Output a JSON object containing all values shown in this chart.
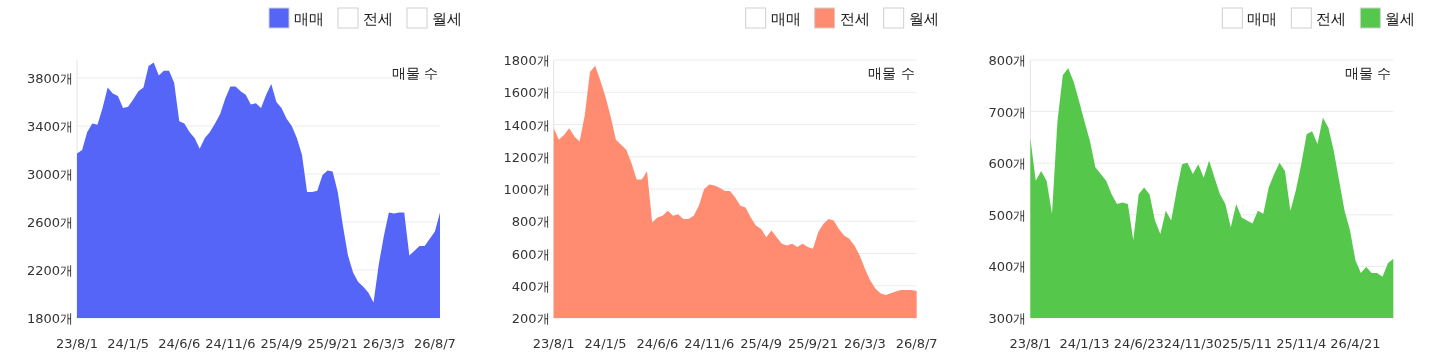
{
  "chart_data": [
    {
      "type": "area",
      "ylabel": "매물 수",
      "grid": "y",
      "legend": "top right",
      "categories": [
        "23/8/1",
        null,
        null,
        null,
        null,
        null,
        null,
        null,
        null,
        null,
        "24/1/5",
        null,
        null,
        null,
        null,
        null,
        null,
        null,
        null,
        null,
        "24/6/6",
        null,
        null,
        null,
        null,
        null,
        null,
        null,
        null,
        null,
        "24/11/6",
        null,
        null,
        null,
        null,
        null,
        null,
        null,
        null,
        null,
        "25/4/9",
        null,
        null,
        null,
        null,
        null,
        null,
        null,
        null,
        null,
        "25/9/21",
        null,
        null,
        null,
        null,
        null,
        null,
        null,
        null,
        null,
        "26/3/3",
        null,
        null,
        null,
        null,
        null,
        null,
        null,
        null,
        null,
        "26/8/7",
        null
      ],
      "ylim": [
        1800,
        3950
      ],
      "yticks": [
        {
          "value": 1800,
          "label": "1800개"
        },
        {
          "value": 2200,
          "label": "2200개"
        },
        {
          "value": 2600,
          "label": "2600개"
        },
        {
          "value": 3000,
          "label": "3000개"
        },
        {
          "value": 3400,
          "label": "3400개"
        },
        {
          "value": 3800,
          "label": "3800개"
        }
      ],
      "series": [
        {
          "name": "매매",
          "color": "#5465f8",
          "values": [
            3170,
            3200,
            3350,
            3420,
            3410,
            3550,
            3720,
            3670,
            3650,
            3550,
            3560,
            3620,
            3690,
            3720,
            3900,
            3930,
            3820,
            3860,
            3860,
            3760,
            3440,
            3420,
            3350,
            3300,
            3210,
            3300,
            3350,
            3420,
            3500,
            3630,
            3730,
            3730,
            3690,
            3660,
            3580,
            3590,
            3550,
            3660,
            3750,
            3600,
            3550,
            3460,
            3400,
            3300,
            3160,
            2850,
            2850,
            2860,
            2990,
            3030,
            3020,
            2850,
            2570,
            2320,
            2180,
            2100,
            2060,
            2010,
            1930,
            2240,
            2480,
            2680,
            2670,
            2680,
            2680,
            2320,
            2360,
            2400,
            2400,
            2460,
            2520,
            2680
          ]
        },
        {
          "name": "전세",
          "color": "#ffffff",
          "values": [
            null,
            null,
            null,
            null,
            null,
            null,
            null,
            null,
            null,
            null,
            null,
            null,
            null,
            null,
            null,
            null,
            null,
            null,
            null,
            null,
            null,
            null,
            null,
            null,
            null,
            null,
            null,
            null,
            null,
            null,
            null,
            null,
            null,
            null,
            null,
            null,
            null,
            null,
            null,
            null,
            null,
            null,
            null,
            null,
            null,
            null,
            null,
            null,
            null,
            null,
            null,
            null,
            null,
            null,
            null,
            null,
            null,
            null,
            null,
            null,
            null,
            null,
            null,
            null,
            null,
            null,
            null,
            null,
            null,
            null,
            null,
            null
          ]
        },
        {
          "name": "월세",
          "color": "#ffffff",
          "values": [
            null,
            null,
            null,
            null,
            null,
            null,
            null,
            null,
            null,
            null,
            null,
            null,
            null,
            null,
            null,
            null,
            null,
            null,
            null,
            null,
            null,
            null,
            null,
            null,
            null,
            null,
            null,
            null,
            null,
            null,
            null,
            null,
            null,
            null,
            null,
            null,
            null,
            null,
            null,
            null,
            null,
            null,
            null,
            null,
            null,
            null,
            null,
            null,
            null,
            null,
            null,
            null,
            null,
            null,
            null,
            null,
            null,
            null,
            null,
            null,
            null,
            null,
            null,
            null,
            null,
            null,
            null,
            null,
            null,
            null,
            null,
            null
          ]
        }
      ]
    },
    {
      "type": "area",
      "ylabel": "매물 수",
      "grid": "y",
      "legend": "top right",
      "categories": [
        "23/8/1",
        null,
        null,
        null,
        null,
        null,
        null,
        null,
        null,
        null,
        "24/1/5",
        null,
        null,
        null,
        null,
        null,
        null,
        null,
        null,
        null,
        "24/6/6",
        null,
        null,
        null,
        null,
        null,
        null,
        null,
        null,
        null,
        "24/11/6",
        null,
        null,
        null,
        null,
        null,
        null,
        null,
        null,
        null,
        "25/4/9",
        null,
        null,
        null,
        null,
        null,
        null,
        null,
        null,
        null,
        "25/9/21",
        null,
        null,
        null,
        null,
        null,
        null,
        null,
        null,
        null,
        "26/3/3",
        null,
        null,
        null,
        null,
        null,
        null,
        null,
        null,
        null,
        "26/8/7"
      ],
      "ylim": [
        200,
        1800
      ],
      "yticks": [
        {
          "value": 200,
          "label": "200개"
        },
        {
          "value": 400,
          "label": "400개"
        },
        {
          "value": 600,
          "label": "600개"
        },
        {
          "value": 800,
          "label": "800개"
        },
        {
          "value": 1000,
          "label": "1000개"
        },
        {
          "value": 1200,
          "label": "1200개"
        },
        {
          "value": 1400,
          "label": "1400개"
        },
        {
          "value": 1600,
          "label": "1600개"
        },
        {
          "value": 1800,
          "label": "1800개"
        }
      ],
      "series": [
        {
          "name": "매매",
          "color": "#ffffff",
          "values": [
            null,
            null,
            null,
            null,
            null,
            null,
            null,
            null,
            null,
            null,
            null,
            null,
            null,
            null,
            null,
            null,
            null,
            null,
            null,
            null,
            null,
            null,
            null,
            null,
            null,
            null,
            null,
            null,
            null,
            null,
            null,
            null,
            null,
            null,
            null,
            null,
            null,
            null,
            null,
            null,
            null,
            null,
            null,
            null,
            null,
            null,
            null,
            null,
            null,
            null,
            null,
            null,
            null,
            null,
            null,
            null,
            null,
            null,
            null,
            null,
            null,
            null,
            null,
            null,
            null,
            null,
            null,
            null,
            null,
            null,
            null
          ]
        },
        {
          "name": "전세",
          "color": "#ff8b71",
          "values": [
            1376,
            1305,
            1335,
            1376,
            1325,
            1295,
            1458,
            1725,
            1765,
            1673,
            1571,
            1448,
            1305,
            1274,
            1243,
            1162,
            1059,
            1059,
            1110,
            793,
            824,
            834,
            865,
            834,
            844,
            814,
            814,
            834,
            896,
            998,
            1028,
            1022,
            1008,
            988,
            988,
            947,
            896,
            885,
            824,
            773,
            752,
            701,
            742,
            701,
            660,
            650,
            660,
            640,
            660,
            640,
            630,
            732,
            783,
            814,
            804,
            752,
            711,
            691,
            650,
            589,
            507,
            435,
            384,
            353,
            343,
            353,
            364,
            374,
            374,
            374,
            368
          ]
        },
        {
          "name": "월세",
          "color": "#ffffff",
          "values": [
            null,
            null,
            null,
            null,
            null,
            null,
            null,
            null,
            null,
            null,
            null,
            null,
            null,
            null,
            null,
            null,
            null,
            null,
            null,
            null,
            null,
            null,
            null,
            null,
            null,
            null,
            null,
            null,
            null,
            null,
            null,
            null,
            null,
            null,
            null,
            null,
            null,
            null,
            null,
            null,
            null,
            null,
            null,
            null,
            null,
            null,
            null,
            null,
            null,
            null,
            null,
            null,
            null,
            null,
            null,
            null,
            null,
            null,
            null,
            null,
            null,
            null,
            null,
            null,
            null,
            null,
            null,
            null,
            null,
            null,
            null
          ]
        }
      ]
    },
    {
      "type": "area",
      "ylabel": "매물 수",
      "grid": "y",
      "legend": "top right",
      "categories": [
        "23/8/1",
        null,
        null,
        null,
        null,
        null,
        null,
        null,
        null,
        null,
        "24/1/13",
        null,
        null,
        null,
        null,
        null,
        null,
        null,
        null,
        null,
        "24/6/23",
        null,
        null,
        null,
        null,
        null,
        null,
        null,
        null,
        null,
        "24/11/30",
        null,
        null,
        null,
        null,
        null,
        null,
        null,
        null,
        null,
        "25/5/11",
        null,
        null,
        null,
        null,
        null,
        null,
        null,
        null,
        null,
        "25/11/4",
        null,
        null,
        null,
        null,
        null,
        null,
        null,
        null,
        null,
        "26/4/21",
        null,
        null,
        null,
        null,
        null,
        null,
        null
      ],
      "ylim": [
        300,
        800
      ],
      "yticks": [
        {
          "value": 300,
          "label": "300개"
        },
        {
          "value": 400,
          "label": "400개"
        },
        {
          "value": 500,
          "label": "500개"
        },
        {
          "value": 600,
          "label": "600개"
        },
        {
          "value": 700,
          "label": "700개"
        },
        {
          "value": 800,
          "label": "800개"
        }
      ],
      "series": [
        {
          "name": "매매",
          "color": "#ffffff",
          "values": [
            null,
            null,
            null,
            null,
            null,
            null,
            null,
            null,
            null,
            null,
            null,
            null,
            null,
            null,
            null,
            null,
            null,
            null,
            null,
            null,
            null,
            null,
            null,
            null,
            null,
            null,
            null,
            null,
            null,
            null,
            null,
            null,
            null,
            null,
            null,
            null,
            null,
            null,
            null,
            null,
            null,
            null,
            null,
            null,
            null,
            null,
            null,
            null,
            null,
            null,
            null,
            null,
            null,
            null,
            null,
            null,
            null,
            null,
            null,
            null,
            null,
            null,
            null,
            null,
            null,
            null,
            null,
            null
          ]
        },
        {
          "name": "전세",
          "color": "#ffffff",
          "values": [
            null,
            null,
            null,
            null,
            null,
            null,
            null,
            null,
            null,
            null,
            null,
            null,
            null,
            null,
            null,
            null,
            null,
            null,
            null,
            null,
            null,
            null,
            null,
            null,
            null,
            null,
            null,
            null,
            null,
            null,
            null,
            null,
            null,
            null,
            null,
            null,
            null,
            null,
            null,
            null,
            null,
            null,
            null,
            null,
            null,
            null,
            null,
            null,
            null,
            null,
            null,
            null,
            null,
            null,
            null,
            null,
            null,
            null,
            null,
            null,
            null,
            null,
            null,
            null,
            null,
            null,
            null,
            null
          ]
        },
        {
          "name": "월세",
          "color": "#55c84c",
          "values": [
            649,
            566,
            585,
            566,
            502,
            681,
            771,
            784,
            758,
            720,
            681,
            643,
            592,
            579,
            566,
            540,
            521,
            524,
            521,
            451,
            540,
            553,
            540,
            489,
            463,
            508,
            489,
            547,
            598,
            601,
            579,
            598,
            572,
            605,
            572,
            540,
            521,
            476,
            521,
            495,
            489,
            483,
            508,
            502,
            553,
            579,
            601,
            585,
            508,
            547,
            598,
            656,
            662,
            637,
            688,
            669,
            624,
            566,
            508,
            470,
            412,
            387,
            399,
            387,
            387,
            380,
            406,
            415
          ]
        }
      ]
    }
  ]
}
